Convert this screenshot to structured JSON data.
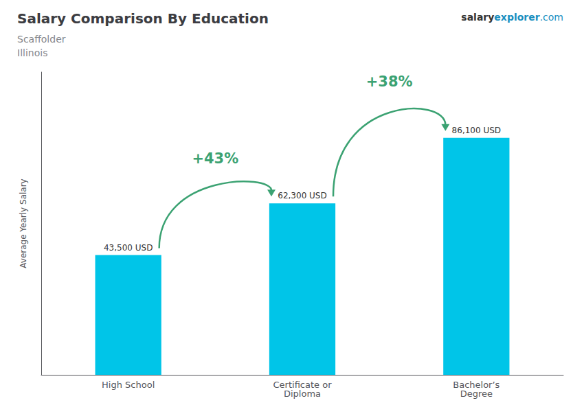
{
  "chart_data": {
    "type": "bar",
    "title": "Salary Comparison By Education",
    "subtitle": [
      "Scaffolder",
      "Illinois"
    ],
    "ylabel": "Average Yearly Salary",
    "categories": [
      "High School",
      "Certificate or\nDiploma",
      "Bachelor’s\nDegree"
    ],
    "values": [
      43500,
      62300,
      86100
    ],
    "value_labels": [
      "43,500 USD",
      "62,300 USD",
      "86,100 USD"
    ],
    "data_labels": true,
    "color": "#00c5e8",
    "ylim": [
      0,
      110000
    ],
    "grid": false,
    "tick_labels": "x",
    "annotations": [
      "+43%",
      "+38%",
      "salary",
      "explorer",
      ".com"
    ]
  }
}
